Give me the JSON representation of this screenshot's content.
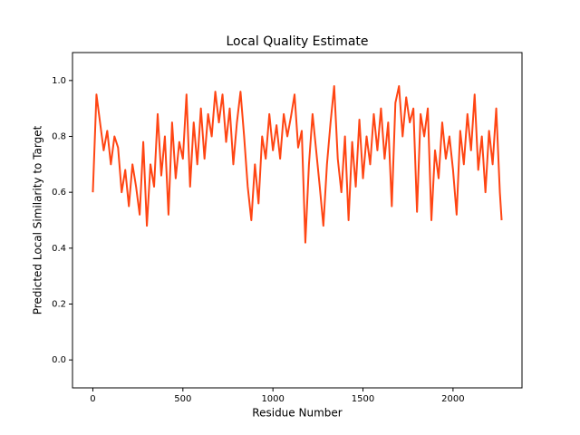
{
  "chart_data": {
    "type": "line",
    "title": "Local Quality Estimate",
    "xlabel": "Residue Number",
    "ylabel": "Predicted Local Similarity to Target",
    "color": "#ff4513",
    "xlim": [
      -113,
      2383
    ],
    "xticks": [
      0,
      500,
      1000,
      1500,
      2000
    ],
    "ylim": [
      -0.1,
      1.1
    ],
    "yticks": [
      {
        "value": 0,
        "label": "0.0"
      },
      0.2,
      0.4,
      0.6,
      0.8,
      {
        "value": 1,
        "label": "1.0"
      }
    ],
    "x": [
      0,
      20,
      40,
      60,
      80,
      100,
      120,
      140,
      160,
      180,
      200,
      220,
      240,
      260,
      280,
      300,
      320,
      340,
      360,
      380,
      400,
      420,
      440,
      460,
      480,
      500,
      520,
      540,
      560,
      580,
      600,
      620,
      640,
      660,
      680,
      700,
      720,
      740,
      760,
      780,
      800,
      820,
      840,
      860,
      880,
      900,
      920,
      940,
      960,
      980,
      1000,
      1020,
      1040,
      1060,
      1080,
      1100,
      1120,
      1140,
      1160,
      1180,
      1200,
      1220,
      1240,
      1260,
      1280,
      1300,
      1320,
      1340,
      1360,
      1380,
      1400,
      1420,
      1440,
      1460,
      1480,
      1500,
      1520,
      1540,
      1560,
      1580,
      1600,
      1620,
      1640,
      1660,
      1680,
      1700,
      1720,
      1740,
      1760,
      1780,
      1800,
      1820,
      1840,
      1860,
      1880,
      1900,
      1920,
      1940,
      1960,
      1980,
      2000,
      2020,
      2040,
      2060,
      2080,
      2100,
      2120,
      2140,
      2160,
      2180,
      2200,
      2220,
      2240,
      2260,
      2270
    ],
    "values": [
      0.6,
      0.95,
      0.85,
      0.75,
      0.82,
      0.7,
      0.8,
      0.76,
      0.6,
      0.68,
      0.55,
      0.7,
      0.62,
      0.52,
      0.78,
      0.48,
      0.7,
      0.62,
      0.88,
      0.66,
      0.8,
      0.52,
      0.85,
      0.65,
      0.78,
      0.72,
      0.95,
      0.62,
      0.85,
      0.7,
      0.9,
      0.72,
      0.88,
      0.8,
      0.96,
      0.85,
      0.95,
      0.78,
      0.9,
      0.7,
      0.85,
      0.96,
      0.8,
      0.62,
      0.5,
      0.7,
      0.56,
      0.8,
      0.72,
      0.88,
      0.75,
      0.84,
      0.72,
      0.88,
      0.8,
      0.87,
      0.95,
      0.76,
      0.82,
      0.42,
      0.7,
      0.88,
      0.75,
      0.62,
      0.48,
      0.7,
      0.85,
      0.98,
      0.72,
      0.6,
      0.8,
      0.5,
      0.78,
      0.62,
      0.86,
      0.65,
      0.8,
      0.7,
      0.88,
      0.75,
      0.9,
      0.72,
      0.85,
      0.55,
      0.92,
      0.98,
      0.8,
      0.94,
      0.85,
      0.9,
      0.53,
      0.88,
      0.8,
      0.9,
      0.5,
      0.75,
      0.65,
      0.85,
      0.72,
      0.8,
      0.68,
      0.52,
      0.82,
      0.7,
      0.88,
      0.75,
      0.95,
      0.68,
      0.8,
      0.6,
      0.82,
      0.7,
      0.9,
      0.6,
      0.5
    ]
  }
}
